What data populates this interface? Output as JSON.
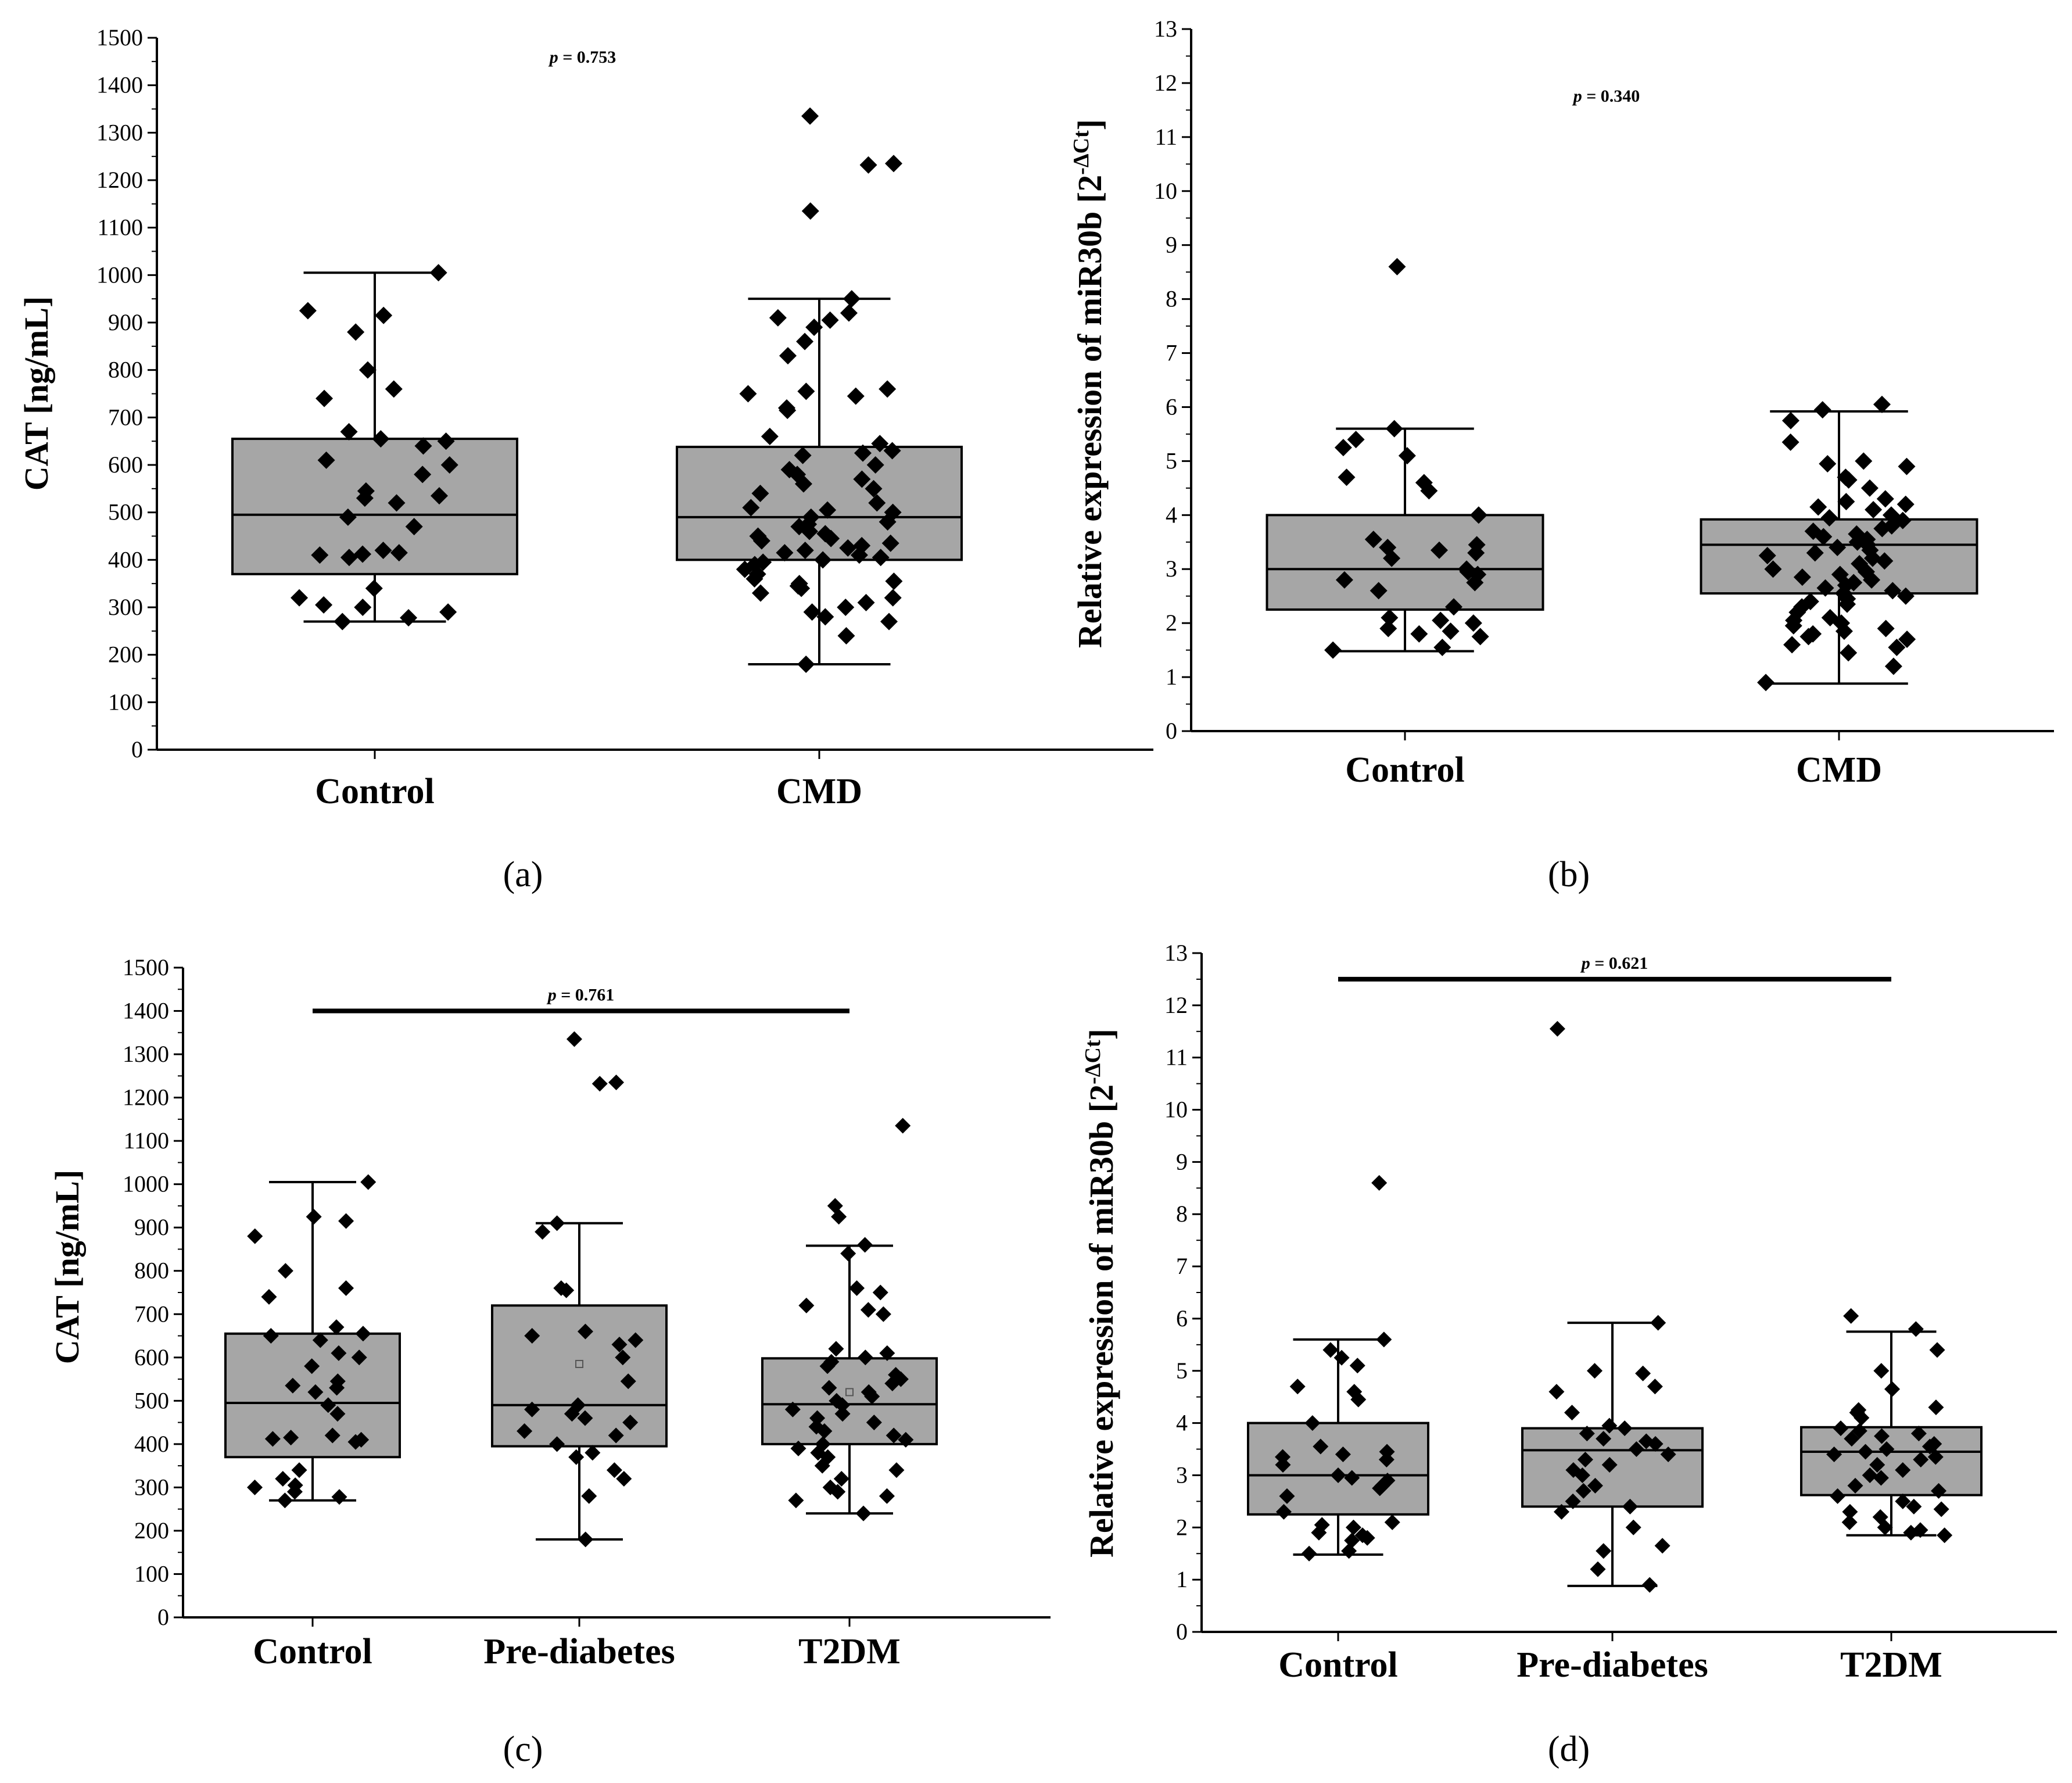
{
  "chart_data": [
    {
      "id": "a",
      "panel_label": "(a)",
      "type": "box",
      "ylabel": "CAT [ng/mL]",
      "ylim": [
        0,
        1500
      ],
      "y_ticks": [
        0,
        100,
        200,
        300,
        400,
        500,
        600,
        700,
        800,
        900,
        1000,
        1100,
        1200,
        1300,
        1400,
        1500
      ],
      "categories": [
        "Control",
        "CMD"
      ],
      "boxes": [
        {
          "whisker_low": 270,
          "q1": 370,
          "median": 495,
          "q3": 655,
          "whisker_high": 1005
        },
        {
          "whisker_low": 180,
          "q1": 400,
          "median": 490,
          "q3": 638,
          "whisker_high": 950
        }
      ],
      "points": [
        [
          1005,
          925,
          915,
          880,
          800,
          760,
          740,
          670,
          655,
          650,
          640,
          610,
          600,
          580,
          545,
          535,
          530,
          520,
          490,
          470,
          420,
          415,
          412,
          410,
          405,
          340,
          320,
          305,
          300,
          290,
          278,
          270
        ],
        [
          1335,
          1235,
          1232,
          1135,
          950,
          920,
          910,
          905,
          890,
          860,
          830,
          760,
          755,
          750,
          745,
          720,
          715,
          660,
          645,
          630,
          625,
          620,
          600,
          590,
          580,
          570,
          560,
          550,
          540,
          520,
          510,
          505,
          500,
          490,
          480,
          475,
          470,
          460,
          455,
          450,
          445,
          440,
          435,
          430,
          425,
          420,
          415,
          410,
          405,
          400,
          395,
          390,
          380,
          370,
          360,
          355,
          350,
          345,
          340,
          330,
          320,
          310,
          300,
          290,
          280,
          270,
          240,
          180
        ]
      ],
      "annotations": [
        "p = 0.753"
      ],
      "comparison_line": false
    },
    {
      "id": "b",
      "panel_label": "(b)",
      "type": "box",
      "ylabel": "Relative expression of miR30b [2-ΔCt]",
      "ylim": [
        0,
        13
      ],
      "y_ticks": [
        0,
        1,
        2,
        3,
        4,
        5,
        6,
        7,
        8,
        9,
        10,
        11,
        12,
        13
      ],
      "categories": [
        "Control",
        "CMD"
      ],
      "boxes": [
        {
          "whisker_low": 1.48,
          "q1": 2.25,
          "median": 3.0,
          "q3": 4.0,
          "whisker_high": 5.6
        },
        {
          "whisker_low": 0.88,
          "q1": 2.55,
          "median": 3.45,
          "q3": 3.92,
          "whisker_high": 5.92
        }
      ],
      "points": [
        [
          8.6,
          5.6,
          5.4,
          5.25,
          5.1,
          4.7,
          4.6,
          4.45,
          4.0,
          3.55,
          3.45,
          3.4,
          3.35,
          3.3,
          3.2,
          3.0,
          2.95,
          2.9,
          2.8,
          2.75,
          2.6,
          2.3,
          2.1,
          2.05,
          2.0,
          1.9,
          1.85,
          1.8,
          1.75,
          1.55,
          1.5
        ],
        [
          6.05,
          5.95,
          5.75,
          5.35,
          5.0,
          4.95,
          4.9,
          4.7,
          4.65,
          4.5,
          4.3,
          4.25,
          4.2,
          4.15,
          4.1,
          4.0,
          3.95,
          3.9,
          3.8,
          3.75,
          3.7,
          3.65,
          3.6,
          3.55,
          3.5,
          3.45,
          3.4,
          3.35,
          3.3,
          3.25,
          3.2,
          3.15,
          3.1,
          3.0,
          2.95,
          2.9,
          2.85,
          2.8,
          2.75,
          2.7,
          2.65,
          2.6,
          2.55,
          2.5,
          2.45,
          2.4,
          2.35,
          2.3,
          2.2,
          2.1,
          2.05,
          2.0,
          1.95,
          1.9,
          1.85,
          1.8,
          1.75,
          1.7,
          1.6,
          1.55,
          1.45,
          1.2,
          0.9
        ]
      ],
      "annotations": [
        "p = 0.340"
      ],
      "comparison_line": false
    },
    {
      "id": "c",
      "panel_label": "(c)",
      "type": "box",
      "ylabel": "CAT [ng/mL]",
      "ylim": [
        0,
        1500
      ],
      "y_ticks": [
        0,
        100,
        200,
        300,
        400,
        500,
        600,
        700,
        800,
        900,
        1000,
        1100,
        1200,
        1300,
        1400,
        1500
      ],
      "categories": [
        "Control",
        "Pre-diabetes",
        "T2DM"
      ],
      "boxes": [
        {
          "whisker_low": 270,
          "q1": 370,
          "median": 495,
          "q3": 655,
          "whisker_high": 1005
        },
        {
          "whisker_low": 180,
          "q1": 395,
          "median": 490,
          "q3": 720,
          "whisker_high": 910
        },
        {
          "whisker_low": 240,
          "q1": 400,
          "median": 492,
          "q3": 598,
          "whisker_high": 858
        }
      ],
      "mean_markers": [
        null,
        585,
        520
      ],
      "points": [
        [
          1005,
          925,
          915,
          880,
          800,
          760,
          740,
          670,
          655,
          650,
          640,
          610,
          600,
          580,
          545,
          535,
          530,
          520,
          490,
          470,
          420,
          415,
          412,
          410,
          405,
          340,
          320,
          305,
          300,
          290,
          278,
          270
        ],
        [
          1335,
          1235,
          1232,
          910,
          890,
          760,
          755,
          660,
          650,
          640,
          630,
          600,
          545,
          490,
          480,
          470,
          460,
          450,
          430,
          420,
          400,
          380,
          370,
          340,
          320,
          280,
          180
        ],
        [
          1135,
          950,
          925,
          860,
          840,
          760,
          750,
          720,
          710,
          700,
          620,
          610,
          600,
          590,
          580,
          560,
          550,
          540,
          530,
          520,
          510,
          500,
          490,
          480,
          470,
          460,
          450,
          440,
          430,
          420,
          410,
          400,
          390,
          380,
          370,
          350,
          340,
          320,
          300,
          290,
          280,
          270,
          240
        ]
      ],
      "annotations": [
        "p = 0.761"
      ],
      "comparison_line": true,
      "comparison_line_y": 1400
    },
    {
      "id": "d",
      "panel_label": "(d)",
      "type": "box",
      "ylabel": "Relative expression of miR30b [2-ΔCt]",
      "ylim": [
        0,
        13
      ],
      "y_ticks": [
        0,
        1,
        2,
        3,
        4,
        5,
        6,
        7,
        8,
        9,
        10,
        11,
        12,
        13
      ],
      "categories": [
        "Control",
        "Pre-diabetes",
        "T2DM"
      ],
      "boxes": [
        {
          "whisker_low": 1.48,
          "q1": 2.25,
          "median": 3.0,
          "q3": 4.0,
          "whisker_high": 5.6
        },
        {
          "whisker_low": 0.88,
          "q1": 2.4,
          "median": 3.48,
          "q3": 3.9,
          "whisker_high": 5.92
        },
        {
          "whisker_low": 1.85,
          "q1": 2.62,
          "median": 3.45,
          "q3": 3.92,
          "whisker_high": 5.75
        }
      ],
      "points": [
        [
          8.6,
          5.6,
          5.4,
          5.25,
          5.1,
          4.7,
          4.6,
          4.45,
          4.0,
          3.55,
          3.45,
          3.4,
          3.35,
          3.3,
          3.2,
          3.0,
          2.95,
          2.9,
          2.8,
          2.75,
          2.6,
          2.3,
          2.1,
          2.05,
          2.0,
          1.9,
          1.85,
          1.8,
          1.75,
          1.55,
          1.5
        ],
        [
          11.55,
          5.92,
          5.0,
          4.95,
          4.7,
          4.6,
          4.2,
          3.95,
          3.9,
          3.8,
          3.7,
          3.65,
          3.6,
          3.5,
          3.4,
          3.3,
          3.2,
          3.1,
          3.0,
          2.8,
          2.7,
          2.5,
          2.4,
          2.3,
          2.0,
          1.65,
          1.55,
          1.2,
          0.9
        ],
        [
          6.05,
          5.8,
          5.4,
          5.0,
          4.65,
          4.3,
          4.25,
          4.2,
          4.1,
          3.9,
          3.85,
          3.8,
          3.75,
          3.7,
          3.6,
          3.55,
          3.5,
          3.45,
          3.4,
          3.35,
          3.3,
          3.2,
          3.1,
          3.0,
          2.95,
          2.8,
          2.7,
          2.6,
          2.5,
          2.4,
          2.35,
          2.3,
          2.2,
          2.1,
          2.0,
          1.95,
          1.9,
          1.85
        ]
      ],
      "annotations": [
        "p = 0.621"
      ],
      "comparison_line": true,
      "comparison_line_y": 12.5
    }
  ]
}
